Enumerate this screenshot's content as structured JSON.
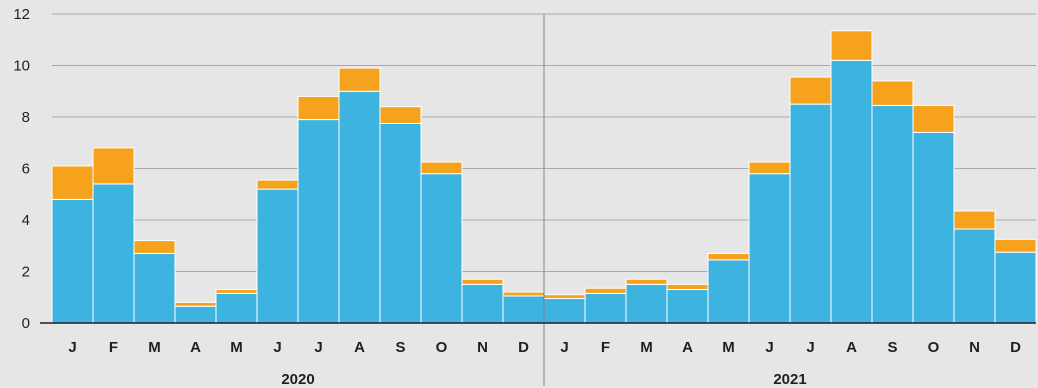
{
  "chart_data": {
    "type": "bar",
    "stacked": true,
    "categories": [
      "J",
      "F",
      "M",
      "A",
      "M",
      "J",
      "J",
      "A",
      "S",
      "O",
      "N",
      "D",
      "J",
      "F",
      "M",
      "A",
      "M",
      "J",
      "J",
      "A",
      "S",
      "O",
      "N",
      "D"
    ],
    "groups": [
      {
        "label": "2020",
        "start": 0,
        "count": 12
      },
      {
        "label": "2021",
        "start": 12,
        "count": 12
      }
    ],
    "series": [
      {
        "color": "#3db4e0",
        "values": [
          4.8,
          5.4,
          2.7,
          0.65,
          1.15,
          5.2,
          7.9,
          9.0,
          7.75,
          5.8,
          1.5,
          1.05,
          0.95,
          1.15,
          1.5,
          1.3,
          2.45,
          5.8,
          8.5,
          10.2,
          8.45,
          7.4,
          3.65,
          2.75
        ]
      },
      {
        "color": "#f6a21d",
        "values": [
          1.3,
          1.4,
          0.5,
          0.15,
          0.15,
          0.35,
          0.9,
          0.9,
          0.65,
          0.45,
          0.2,
          0.15,
          0.15,
          0.2,
          0.2,
          0.2,
          0.25,
          0.45,
          1.05,
          1.15,
          0.95,
          1.05,
          0.7,
          0.5
        ]
      }
    ],
    "ylim": [
      0,
      12
    ],
    "yticks": [
      0,
      2,
      4,
      6,
      8,
      10,
      12
    ],
    "grid": true,
    "colors": {
      "background": "#e6e6e7",
      "grid": "#a7a9ac",
      "axis": "#231f20",
      "divider": "#808285",
      "bar_separator": "#ffffff"
    }
  }
}
